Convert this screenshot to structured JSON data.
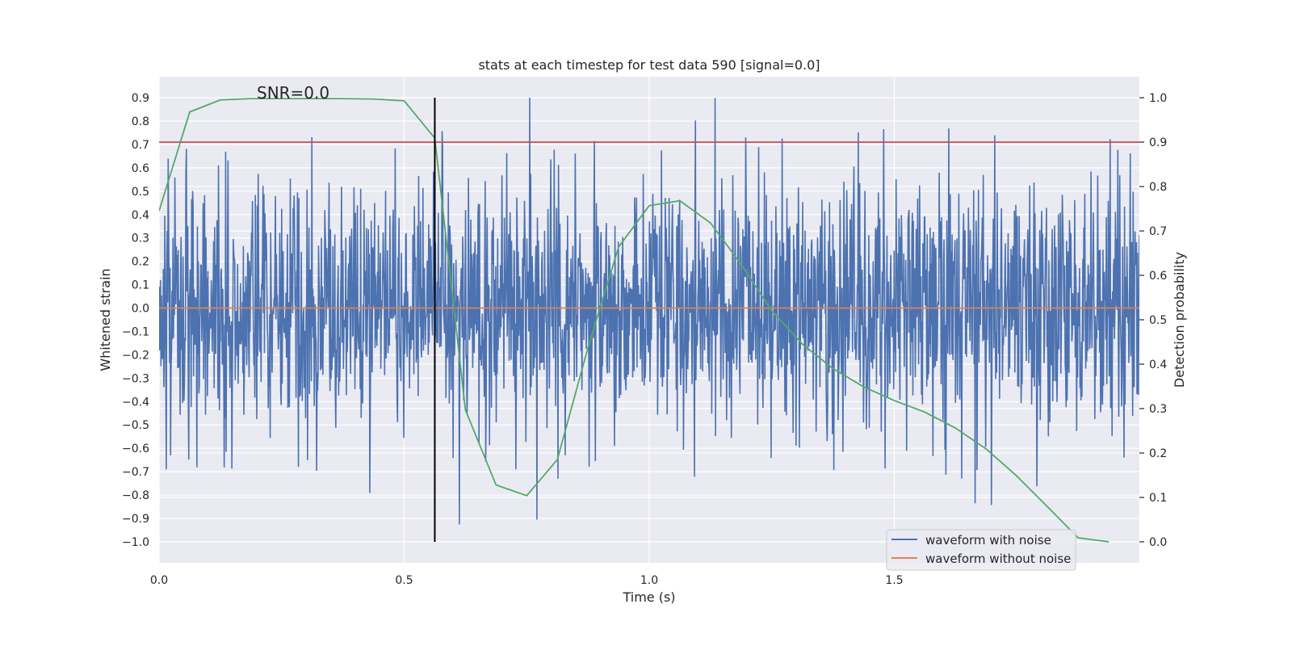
{
  "chart_data": {
    "type": "line",
    "title": "stats at each timestep for test data 590 [signal=0.0]",
    "xlabel": "Time (s)",
    "ylabel": "Whitened strain",
    "ylabel_right": "Detection probability",
    "annotation": "SNR=0.0",
    "xlim": [
      0,
      2.0
    ],
    "ylim": [
      -1.09,
      0.99
    ],
    "ylim_right": [
      -0.0473,
      1.0473
    ],
    "x_ticks": [
      0.0,
      0.5,
      1.0,
      1.5
    ],
    "x_tick_labels": [
      "0.0",
      "0.5",
      "1.0",
      "1.5"
    ],
    "y_ticks": [
      0.9,
      0.8,
      0.7,
      0.6,
      0.5,
      0.4,
      0.3,
      0.2,
      0.1,
      0.0,
      -0.1,
      -0.2,
      -0.3,
      -0.4,
      -0.5,
      -0.6,
      -0.7,
      -0.8,
      -0.9,
      -1.0
    ],
    "y_tick_labels": [
      "0.9",
      "0.8",
      "0.7",
      "0.6",
      "0.5",
      "0.4",
      "0.3",
      "0.2",
      "0.1",
      "0.0",
      "−0.1",
      "−0.2",
      "−0.3",
      "−0.4",
      "−0.5",
      "−0.6",
      "−0.7",
      "−0.8",
      "−0.9",
      "−1.0"
    ],
    "y_right_ticks": [
      1.0,
      0.9,
      0.8,
      0.7,
      0.6,
      0.5,
      0.4,
      0.3,
      0.2,
      0.1,
      0.0
    ],
    "y_right_tick_labels": [
      "1.0",
      "0.9",
      "0.8",
      "0.7",
      "0.6",
      "0.5",
      "0.4",
      "0.3",
      "0.2",
      "0.1",
      "0.0"
    ],
    "threshold_probability": 0.9,
    "detection_time": 0.5625,
    "noise_waveform": {
      "name": "waveform with noise",
      "color": "#4c72b0",
      "samples": 2048,
      "amplitude_range": [
        -1.0,
        0.9
      ],
      "seed": 590
    },
    "series": [
      {
        "name": "waveform without noise",
        "color": "#dd8452",
        "x": [
          0.0,
          2.0
        ],
        "y": [
          0.0,
          0.0
        ]
      },
      {
        "name": "detection probability",
        "color": "#55a868",
        "axis": "right",
        "x": [
          0.0,
          0.0625,
          0.125,
          0.1875,
          0.25,
          0.3125,
          0.375,
          0.4375,
          0.5,
          0.5625,
          0.625,
          0.6875,
          0.75,
          0.8125,
          0.875,
          0.9375,
          1.0,
          1.0625,
          1.125,
          1.1875,
          1.25,
          1.3125,
          1.375,
          1.4375,
          1.5,
          1.5625,
          1.625,
          1.6875,
          1.75,
          1.8125,
          1.875,
          1.9375
        ],
        "y": [
          0.745,
          0.968,
          0.995,
          0.998,
          0.998,
          0.998,
          0.998,
          0.997,
          0.993,
          0.909,
          0.297,
          0.128,
          0.104,
          0.185,
          0.437,
          0.664,
          0.757,
          0.768,
          0.718,
          0.625,
          0.52,
          0.445,
          0.39,
          0.349,
          0.318,
          0.292,
          0.256,
          0.209,
          0.148,
          0.079,
          0.009,
          0.0
        ]
      }
    ],
    "legend": {
      "position": "lower-right",
      "entries": [
        {
          "label": "waveform with noise",
          "color": "#4c72b0"
        },
        {
          "label": "waveform without noise",
          "color": "#dd8452"
        }
      ]
    },
    "colors": {
      "plot_background": "#eaeaf2",
      "grid": "#ffffff",
      "threshold_line": "#c44e52",
      "detection_line": "#000000"
    }
  }
}
